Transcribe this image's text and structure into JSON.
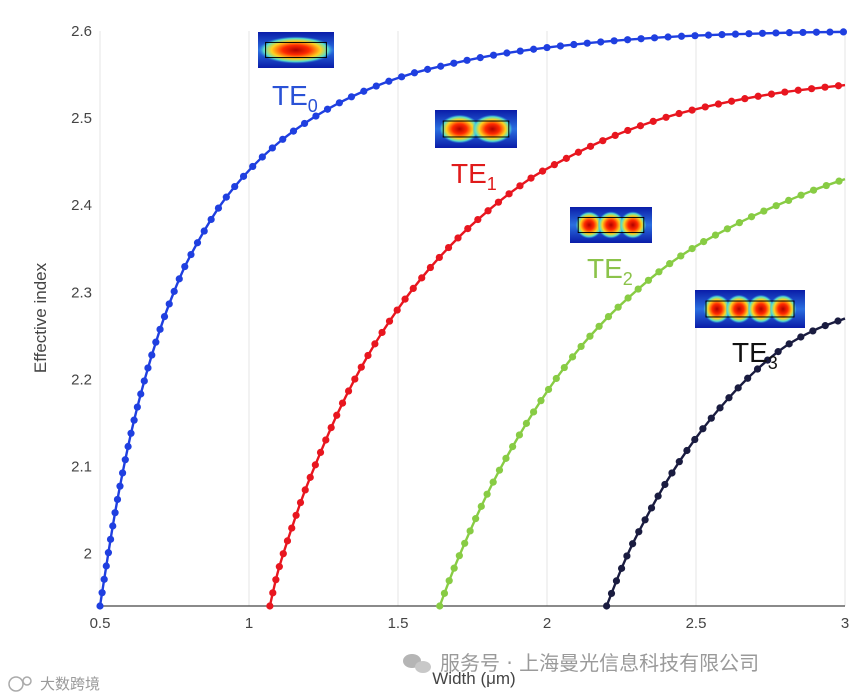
{
  "chart_data": {
    "type": "line",
    "xlabel": "Width (μm)",
    "ylabel": "Effective index",
    "xlim": [
      0.5,
      3.0
    ],
    "ylim": [
      1.94,
      2.6
    ],
    "xticks": [
      "0.5",
      "1",
      "1.5",
      "2",
      "2.5",
      "3"
    ],
    "yticks": [
      "2",
      "2.1",
      "2.2",
      "2.3",
      "2.4",
      "2.5",
      "2.6"
    ],
    "grid": "vertical",
    "series": [
      {
        "name": "TE",
        "sub": "0",
        "color": "#1f3fe0",
        "label_color": "#2a52d6",
        "x": [
          0.5,
          0.55,
          0.6,
          0.65,
          0.7,
          0.75,
          0.8,
          0.9,
          1.0,
          1.1,
          1.2,
          1.3,
          1.4,
          1.5,
          1.6,
          1.8,
          2.0,
          2.2,
          2.4,
          2.6,
          2.8,
          3.0
        ],
        "y": [
          1.94,
          2.046,
          2.132,
          2.2,
          2.256,
          2.302,
          2.34,
          2.398,
          2.44,
          2.472,
          2.497,
          2.517,
          2.533,
          2.546,
          2.556,
          2.571,
          2.581,
          2.588,
          2.593,
          2.596,
          2.598,
          2.599
        ]
      },
      {
        "name": "TE",
        "sub": "1",
        "color": "#e8161f",
        "label_color": "#e01b1b",
        "x": [
          1.07,
          1.1,
          1.15,
          1.2,
          1.3,
          1.4,
          1.5,
          1.6,
          1.7,
          1.8,
          1.9,
          2.0,
          2.2,
          2.4,
          2.6,
          2.8,
          3.0
        ],
        "y": [
          1.94,
          1.983,
          2.036,
          2.083,
          2.163,
          2.228,
          2.281,
          2.325,
          2.362,
          2.393,
          2.42,
          2.442,
          2.476,
          2.501,
          2.518,
          2.53,
          2.538
        ]
      },
      {
        "name": "TE",
        "sub": "2",
        "color": "#88cc44",
        "label_color": "#8bc34a",
        "x": [
          1.64,
          1.7,
          1.8,
          1.9,
          2.0,
          2.1,
          2.2,
          2.3,
          2.4,
          2.5,
          2.6,
          2.7,
          2.8,
          2.9,
          3.0
        ],
        "y": [
          1.94,
          1.993,
          2.069,
          2.132,
          2.186,
          2.232,
          2.27,
          2.302,
          2.33,
          2.353,
          2.372,
          2.389,
          2.404,
          2.418,
          2.43
        ]
      },
      {
        "name": "TE",
        "sub": "3",
        "color": "#1a1c40",
        "label_color": "#111111",
        "x": [
          2.2,
          2.25,
          2.3,
          2.4,
          2.5,
          2.6,
          2.7,
          2.8,
          2.9,
          3.0
        ],
        "y": [
          1.94,
          1.983,
          2.02,
          2.082,
          2.133,
          2.175,
          2.21,
          2.238,
          2.257,
          2.27
        ]
      }
    ]
  },
  "watermark": {
    "left_text": "大数跨境",
    "right_text": "服务号 · 上海曼光信息科技有限公司"
  }
}
